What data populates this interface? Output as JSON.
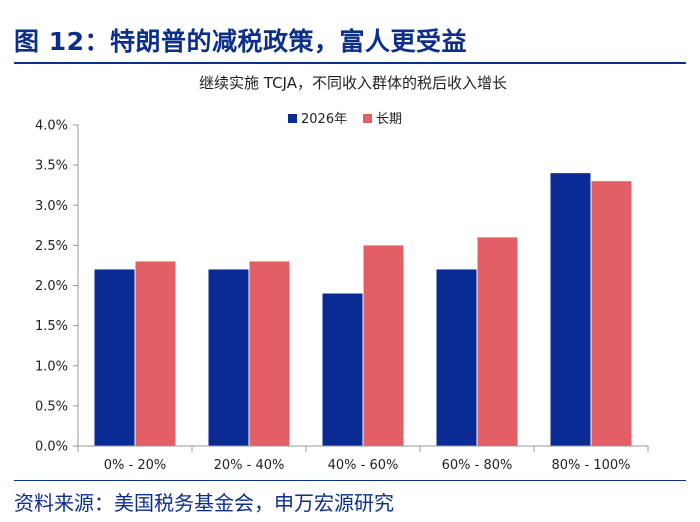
{
  "figure_title": "图 12：特朗普的减税政策，富人更受益",
  "source_note": "资料来源：美国税务基金会，申万宏源研究",
  "colors": {
    "series_1": "#0a2a94",
    "series_2": "#e26065",
    "accent": "#0c2f8c",
    "axis": "#999999"
  },
  "chart_data": {
    "type": "bar",
    "title": "继续实施 TCJA，不同收入群体的税后收入增长",
    "xlabel": "",
    "ylabel": "",
    "categories": [
      "0% - 20%",
      "20% - 40%",
      "40% - 60%",
      "60% - 80%",
      "80% - 100%"
    ],
    "series": [
      {
        "name": "2026年",
        "values": [
          2.2,
          2.2,
          1.9,
          2.2,
          3.4
        ]
      },
      {
        "name": "长期",
        "values": [
          2.3,
          2.3,
          2.5,
          2.6,
          3.3
        ]
      }
    ],
    "ylim": [
      0,
      4.0
    ],
    "yticks": [
      "0.0%",
      "0.5%",
      "1.0%",
      "1.5%",
      "2.0%",
      "2.5%",
      "3.0%",
      "3.5%",
      "4.0%"
    ],
    "legend_position": "top-center",
    "grid": false
  }
}
